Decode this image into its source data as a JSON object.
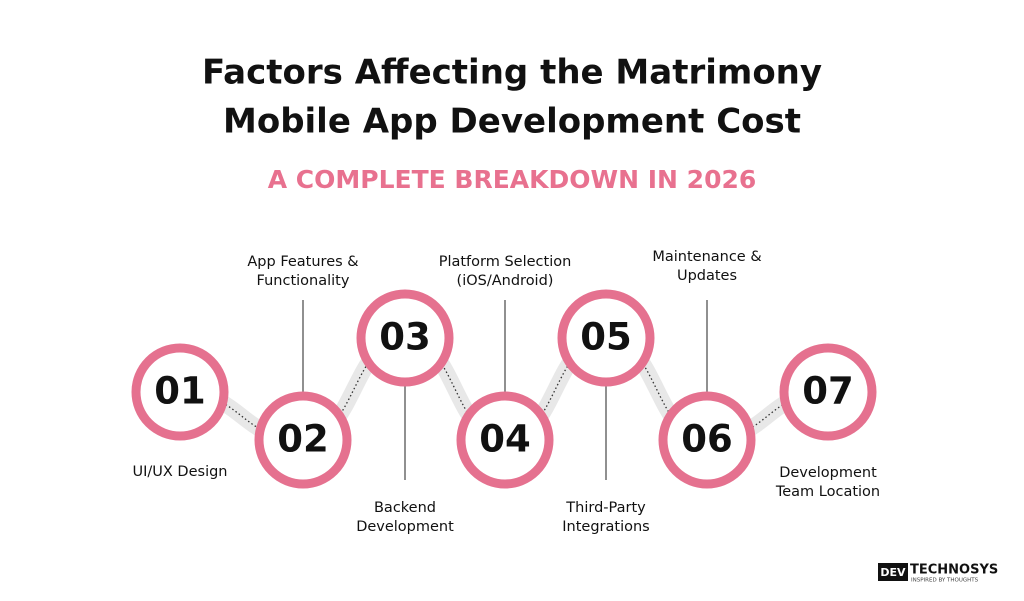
{
  "header": {
    "title_lines": [
      "Factors Affecting the Matrimony",
      "Mobile App Development Cost"
    ],
    "subtitle": "A COMPLETE BREAKDOWN IN 2026"
  },
  "steps": [
    {
      "number": "01",
      "label_lines": [
        "UI/UX Design"
      ]
    },
    {
      "number": "02",
      "label_lines": [
        "App Features &",
        "Functionality"
      ]
    },
    {
      "number": "03",
      "label_lines": [
        "Backend",
        "Development"
      ]
    },
    {
      "number": "04",
      "label_lines": [
        "Platform Selection",
        "(iOS/Android)"
      ]
    },
    {
      "number": "05",
      "label_lines": [
        "Third-Party",
        "Integrations"
      ]
    },
    {
      "number": "06",
      "label_lines": [
        "Maintenance &",
        "Updates"
      ]
    },
    {
      "number": "07",
      "label_lines": [
        "Development",
        "Team Location"
      ]
    }
  ],
  "logo": {
    "mark": "DEV",
    "name": "TECHNOSYS",
    "tagline": "INSPIRED BY THOUGHTS"
  }
}
